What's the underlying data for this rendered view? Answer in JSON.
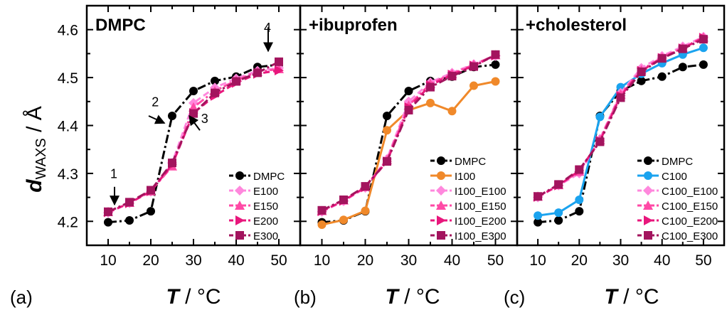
{
  "figure": {
    "ylabel_main": "d",
    "ylabel_sub": "WAXS",
    "ylabel_unit": " / Å",
    "xlabel_main": "T",
    "xlabel_unit": "  / °C",
    "panel_labels": [
      "(a)",
      "(b)",
      "(c)"
    ]
  },
  "chart_data": [
    {
      "type": "line",
      "title": "DMPC",
      "xlim": [
        5,
        55
      ],
      "ylim": [
        4.15,
        4.65
      ],
      "x_ticks": [
        10,
        20,
        30,
        40,
        50
      ],
      "y_ticks": [
        4.2,
        4.3,
        4.4,
        4.5,
        4.6
      ],
      "legend_position": "bottom-right",
      "x": [
        10,
        15,
        20,
        25,
        30,
        35,
        40,
        45,
        50
      ],
      "series": [
        {
          "name": "DMPC",
          "color": "#000000",
          "marker": "circle",
          "dash": "dashdot",
          "values": [
            4.198,
            4.202,
            4.221,
            4.42,
            4.472,
            4.493,
            4.502,
            4.522,
            4.527
          ]
        },
        {
          "name": "E100",
          "color": "#ff88dd",
          "marker": "diamond",
          "dash": "dash",
          "values": [
            4.218,
            4.238,
            4.262,
            4.322,
            4.447,
            4.479,
            4.498,
            4.514,
            4.52
          ]
        },
        {
          "name": "E150",
          "color": "#ff4aa6",
          "marker": "triangle-up",
          "dash": "dashdot",
          "values": [
            4.22,
            4.239,
            4.263,
            4.315,
            4.438,
            4.472,
            4.494,
            4.512,
            4.518
          ]
        },
        {
          "name": "E200",
          "color": "#e8177c",
          "marker": "triangle-right",
          "dash": "dash",
          "values": [
            4.219,
            4.238,
            4.263,
            4.318,
            4.426,
            4.462,
            4.489,
            4.508,
            4.515
          ]
        },
        {
          "name": "E300",
          "color": "#a3145e",
          "marker": "square",
          "dash": "dashdot",
          "values": [
            4.22,
            4.24,
            4.265,
            4.322,
            4.425,
            4.468,
            4.492,
            4.51,
            4.533
          ]
        }
      ],
      "annotations": [
        {
          "text": "1",
          "x": 11.5,
          "y": 4.245
        },
        {
          "text": "2",
          "x": 23.5,
          "y": 4.425
        },
        {
          "text": "3",
          "x": 26.5,
          "y": 4.42
        },
        {
          "text": "4",
          "x": 47.5,
          "y": 4.54
        }
      ]
    },
    {
      "type": "line",
      "title": "+ibuprofen",
      "xlim": [
        5,
        55
      ],
      "ylim": [
        4.15,
        4.65
      ],
      "x_ticks": [
        10,
        20,
        30,
        40,
        50
      ],
      "y_ticks": [
        4.2,
        4.3,
        4.4,
        4.5,
        4.6
      ],
      "legend_position": "bottom-right",
      "x": [
        10,
        15,
        20,
        25,
        30,
        35,
        40,
        45,
        50
      ],
      "series": [
        {
          "name": "DMPC",
          "color": "#000000",
          "marker": "circle",
          "dash": "dashdot",
          "values": [
            4.198,
            4.202,
            4.221,
            4.42,
            4.472,
            4.493,
            4.502,
            4.522,
            4.527
          ]
        },
        {
          "name": "I100",
          "color": "#f0892a",
          "marker": "circle",
          "dash": "solid",
          "values": [
            4.193,
            4.203,
            4.222,
            4.39,
            4.432,
            4.447,
            4.43,
            4.483,
            4.492
          ]
        },
        {
          "name": "I100_E100",
          "color": "#ff88dd",
          "marker": "diamond",
          "dash": "dash",
          "values": [
            4.22,
            4.242,
            4.27,
            4.33,
            4.45,
            4.49,
            4.51,
            4.528,
            4.545
          ]
        },
        {
          "name": "I100_E150",
          "color": "#ff4aa6",
          "marker": "triangle-up",
          "dash": "dashdot",
          "values": [
            4.222,
            4.244,
            4.272,
            4.328,
            4.442,
            4.487,
            4.508,
            4.527,
            4.547
          ]
        },
        {
          "name": "I100_E200",
          "color": "#e8177c",
          "marker": "triangle-right",
          "dash": "dash",
          "values": [
            4.221,
            4.243,
            4.271,
            4.325,
            4.438,
            4.484,
            4.506,
            4.525,
            4.546
          ]
        },
        {
          "name": "I100_E300",
          "color": "#a3145e",
          "marker": "square",
          "dash": "dashdot",
          "values": [
            4.223,
            4.245,
            4.273,
            4.325,
            4.432,
            4.48,
            4.503,
            4.523,
            4.548
          ]
        }
      ]
    },
    {
      "type": "line",
      "title": "+cholesterol",
      "xlim": [
        5,
        55
      ],
      "ylim": [
        4.15,
        4.65
      ],
      "x_ticks": [
        10,
        20,
        30,
        40,
        50
      ],
      "y_ticks": [
        4.2,
        4.3,
        4.4,
        4.5,
        4.6
      ],
      "legend_position": "bottom-right",
      "x": [
        10,
        15,
        20,
        25,
        30,
        35,
        40,
        45,
        50
      ],
      "series": [
        {
          "name": "DMPC",
          "color": "#000000",
          "marker": "circle",
          "dash": "dashdot",
          "values": [
            4.198,
            4.202,
            4.221,
            4.42,
            4.472,
            4.493,
            4.502,
            4.522,
            4.527
          ]
        },
        {
          "name": "C100",
          "color": "#1aa3ef",
          "marker": "circle",
          "dash": "solid",
          "values": [
            4.212,
            4.218,
            4.245,
            4.418,
            4.48,
            4.508,
            4.53,
            4.548,
            4.562
          ]
        },
        {
          "name": "C100_E100",
          "color": "#ff88dd",
          "marker": "diamond",
          "dash": "dash",
          "values": [
            4.25,
            4.275,
            4.3,
            4.372,
            4.468,
            4.52,
            4.545,
            4.565,
            4.585
          ]
        },
        {
          "name": "C100_E150",
          "color": "#ff4aa6",
          "marker": "triangle-up",
          "dash": "dashdot",
          "values": [
            4.252,
            4.276,
            4.304,
            4.37,
            4.465,
            4.516,
            4.542,
            4.562,
            4.584
          ]
        },
        {
          "name": "C100_E200",
          "color": "#e8177c",
          "marker": "triangle-right",
          "dash": "dash",
          "values": [
            4.251,
            4.275,
            4.306,
            4.368,
            4.462,
            4.514,
            4.541,
            4.561,
            4.583
          ]
        },
        {
          "name": "C100_E300",
          "color": "#a3145e",
          "marker": "square",
          "dash": "dashdot",
          "values": [
            4.252,
            4.277,
            4.308,
            4.366,
            4.458,
            4.512,
            4.54,
            4.56,
            4.58
          ]
        }
      ]
    }
  ]
}
